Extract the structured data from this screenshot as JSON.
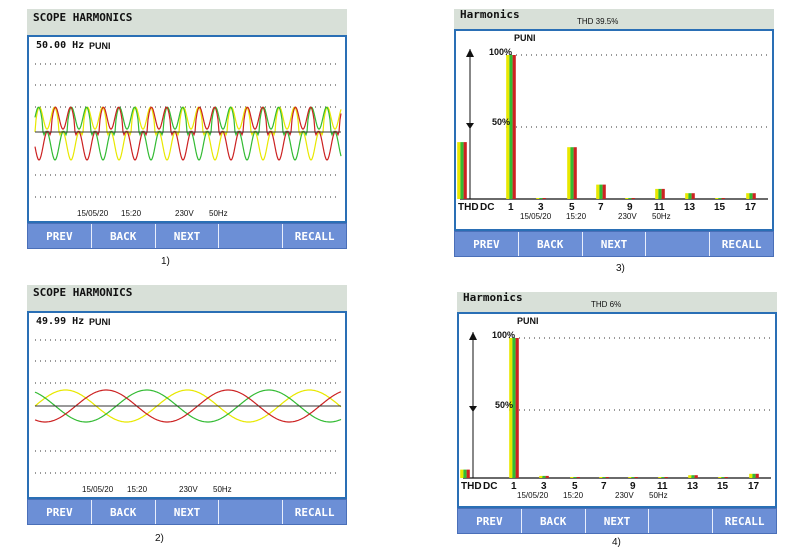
{
  "colors": {
    "phase1": "#e8e800",
    "phase2": "#33bb33",
    "phase3": "#cc2222",
    "screen_border": "#2a6fb5",
    "button_bg": "#6c8fd6",
    "titlebar_bg": "#d8e0d8"
  },
  "buttons": [
    "PREV",
    "BACK",
    "NEXT",
    "",
    "RECALL"
  ],
  "status": {
    "date": "15/05/20",
    "time": "15:20",
    "voltage": "230V",
    "frequency": "50Hz"
  },
  "icons": [
    "vertical-arrow-icon",
    "cursor-marker-icon"
  ],
  "panels": [
    {
      "caption": "1)",
      "title": "SCOPE HARMONICS",
      "freq_readout": "50.00 Hz",
      "unit_label": "PUNI"
    },
    {
      "caption": "2)",
      "title": "SCOPE HARMONICS",
      "freq_readout": "49.99 Hz",
      "unit_label": "PUNI"
    },
    {
      "caption": "3)",
      "title": "Harmonics",
      "thd": "THD 39.5%",
      "unit_label": "PUNI",
      "y_ticks": [
        "100%",
        "50%"
      ],
      "x_labels": [
        "THD",
        "DC",
        "1",
        "3",
        "5",
        "7",
        "9",
        "11",
        "13",
        "15",
        "17"
      ],
      "chart_data": {
        "type": "bar",
        "categories": [
          "THD",
          "DC",
          "1",
          "3",
          "5",
          "7",
          "9",
          "11",
          "13",
          "15",
          "17"
        ],
        "series": [
          {
            "values": [
              39.5,
              0,
              100,
              0.5,
              36,
              10,
              0.5,
              7,
              4,
              0.5,
              4
            ]
          },
          {
            "values": [
              39.5,
              0,
              100,
              0.5,
              36,
              10,
              0.5,
              7,
              4,
              0.5,
              4
            ]
          },
          {
            "values": [
              39.5,
              0,
              100,
              0.5,
              36,
              10,
              0.5,
              7,
              4,
              0.5,
              4
            ]
          }
        ],
        "ylim": [
          0,
          100
        ]
      }
    },
    {
      "caption": "4)",
      "title": "Harmonics",
      "thd": "THD 6%",
      "unit_label": "PUNI",
      "y_ticks": [
        "100%",
        "50%"
      ],
      "x_labels": [
        "THD",
        "DC",
        "1",
        "3",
        "5",
        "7",
        "9",
        "11",
        "13",
        "15",
        "17"
      ],
      "chart_data": {
        "type": "bar",
        "categories": [
          "THD",
          "DC",
          "1",
          "3",
          "5",
          "7",
          "9",
          "11",
          "13",
          "15",
          "17"
        ],
        "series": [
          {
            "values": [
              6,
              0,
              100,
              1.5,
              0.3,
              0.3,
              0.3,
              0.3,
              2,
              0.3,
              3
            ]
          },
          {
            "values": [
              6,
              0,
              100,
              1.5,
              0.3,
              0.3,
              0.3,
              0.3,
              2,
              0.3,
              3
            ]
          },
          {
            "values": [
              6,
              0,
              100,
              1.5,
              0.3,
              0.3,
              0.3,
              0.3,
              2,
              0.3,
              3
            ]
          }
        ],
        "ylim": [
          0,
          100
        ]
      }
    }
  ]
}
